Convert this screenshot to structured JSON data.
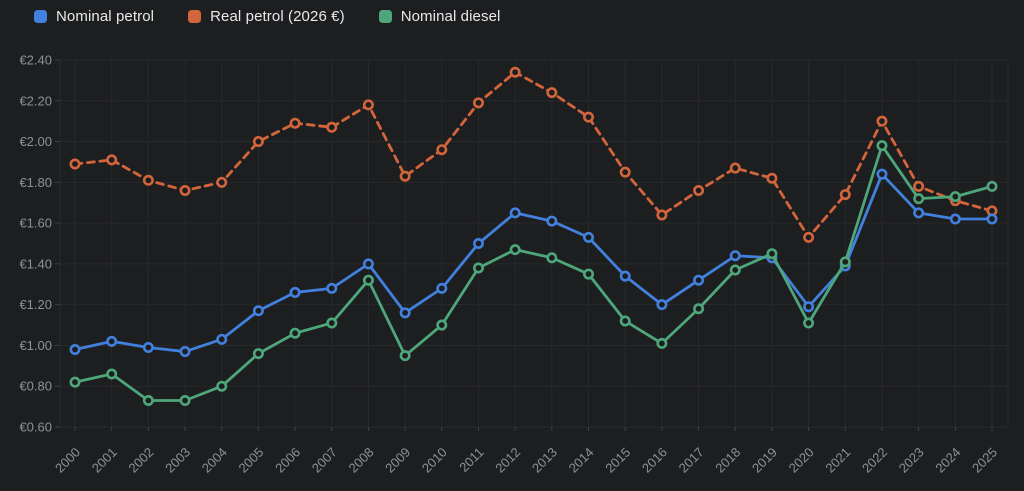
{
  "chart_data": {
    "type": "line",
    "x": [
      2000,
      2001,
      2002,
      2003,
      2004,
      2005,
      2006,
      2007,
      2008,
      2009,
      2010,
      2011,
      2012,
      2013,
      2014,
      2015,
      2016,
      2017,
      2018,
      2019,
      2020,
      2021,
      2022,
      2023,
      2024,
      2025
    ],
    "series": [
      {
        "name": "Nominal petrol",
        "color": "#4280dd",
        "line_style": "solid",
        "values": [
          0.98,
          1.02,
          0.99,
          0.97,
          1.03,
          1.17,
          1.26,
          1.28,
          1.4,
          1.16,
          1.28,
          1.5,
          1.65,
          1.61,
          1.53,
          1.34,
          1.2,
          1.32,
          1.44,
          1.43,
          1.19,
          1.39,
          1.84,
          1.65,
          1.62,
          1.62
        ]
      },
      {
        "name": "Real petrol (2026 €)",
        "color": "#d2653c",
        "line_style": "dashed",
        "values": [
          1.89,
          1.91,
          1.81,
          1.76,
          1.8,
          2.0,
          2.09,
          2.07,
          2.18,
          1.83,
          1.96,
          2.19,
          2.34,
          2.24,
          2.12,
          1.85,
          1.64,
          1.76,
          1.87,
          1.82,
          1.53,
          1.74,
          2.1,
          1.78,
          1.71,
          1.66
        ]
      },
      {
        "name": "Nominal diesel",
        "color": "#4ea67b",
        "line_style": "solid",
        "values": [
          0.82,
          0.86,
          0.73,
          0.73,
          0.8,
          0.96,
          1.06,
          1.11,
          1.32,
          0.95,
          1.1,
          1.38,
          1.47,
          1.43,
          1.35,
          1.12,
          1.01,
          1.18,
          1.37,
          1.45,
          1.11,
          1.41,
          1.98,
          1.72,
          1.73,
          1.78
        ]
      }
    ],
    "ylim": [
      0.6,
      2.4
    ],
    "ytick_step": 0.2,
    "y_tick_labels": [
      "€0.60",
      "€0.80",
      "€1.00",
      "€1.20",
      "€1.40",
      "€1.60",
      "€1.80",
      "€2.00",
      "€2.20",
      "€2.40"
    ],
    "x_tick_labels": [
      "2000",
      "2001",
      "2002",
      "2003",
      "2004",
      "2005",
      "2006",
      "2007",
      "2008",
      "2009",
      "2010",
      "2011",
      "2012",
      "2013",
      "2014",
      "2015",
      "2016",
      "2017",
      "2018",
      "2019",
      "2020",
      "2021",
      "2022",
      "2023",
      "2024",
      "2025"
    ],
    "currency_prefix": "€",
    "grid": true,
    "legend_position": "top-left",
    "background": "#1d1e1f",
    "grid_color": "#28292b",
    "axis_tick_color": "#3e4043",
    "label_color": "#8f9194"
  }
}
